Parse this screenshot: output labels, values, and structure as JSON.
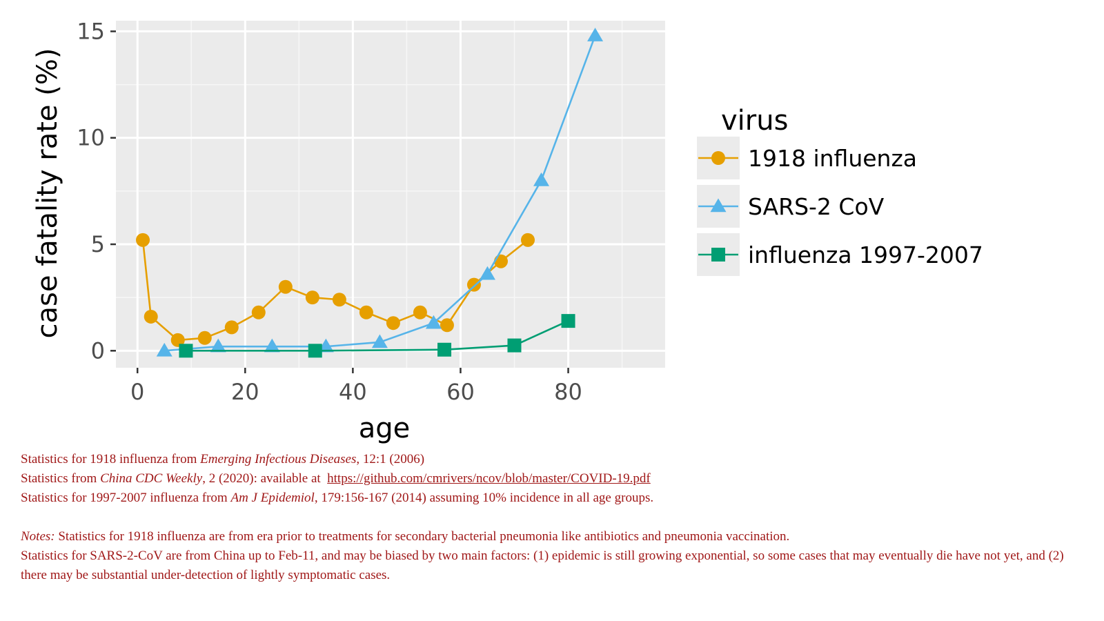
{
  "chart_data": {
    "type": "line",
    "xlabel": "age",
    "ylabel": "case fatality rate (%)",
    "xlim": [
      -4,
      98
    ],
    "ylim": [
      -0.8,
      15.5
    ],
    "xticks": [
      0,
      20,
      40,
      60,
      80
    ],
    "yticks": [
      0,
      5,
      10,
      15
    ],
    "grid": true,
    "legend_position": "right",
    "legend_title": "virus",
    "series": [
      {
        "name": "1918 influenza",
        "color": "#e69f00",
        "marker": "circle",
        "x": [
          1,
          2.5,
          7.5,
          12.5,
          17.5,
          22.5,
          27.5,
          32.5,
          37.5,
          42.5,
          47.5,
          52.5,
          57.5,
          62.5,
          67.5,
          72.5
        ],
        "y": [
          5.2,
          1.6,
          0.5,
          0.6,
          1.1,
          1.8,
          3.0,
          2.5,
          2.4,
          1.8,
          1.3,
          1.8,
          1.2,
          3.1,
          4.2,
          5.2
        ]
      },
      {
        "name": "SARS-2 CoV",
        "color": "#56b4e9",
        "marker": "triangle",
        "x": [
          5,
          15,
          25,
          35,
          45,
          55,
          65,
          75,
          85
        ],
        "y": [
          0,
          0.2,
          0.2,
          0.2,
          0.4,
          1.3,
          3.6,
          8.0,
          14.8
        ]
      },
      {
        "name": "influenza 1997-2007",
        "color": "#009e73",
        "marker": "square",
        "x": [
          9,
          33,
          57,
          70,
          80
        ],
        "y": [
          0,
          0,
          0.05,
          0.25,
          1.4
        ]
      }
    ]
  },
  "notes": {
    "line1_pre": "Statistics for 1918 influenza from ",
    "line1_italic": "Emerging Infectious Diseases",
    "line1_post": ", 12:1 (2006)",
    "line2_pre": "Statistics from ",
    "line2_italic": "China CDC Weekly",
    "line2_mid": ", 2 (2020): available at  ",
    "line2_link": "https://github.com/cmrivers/ncov/blob/master/COVID-19.pdf",
    "line3_pre": "Statistics for 1997-2007 influenza from ",
    "line3_italic": "Am J Epidemiol",
    "line3_post": ", 179:156-167 (2014) assuming 10% incidence in all age groups.",
    "notes_label": "Notes:",
    "note1": " Statistics for 1918 influenza are from era prior to treatments for secondary bacterial pneumonia like antibiotics and pneumonia vaccination.",
    "note2": "Statistics for SARS-2-CoV are from China up to Feb-11, and may be biased by two main factors: (1) epidemic is still growing exponential, so some cases that may eventually die have not yet, and (2) there may be substantial under-detection of lightly symptomatic cases."
  }
}
